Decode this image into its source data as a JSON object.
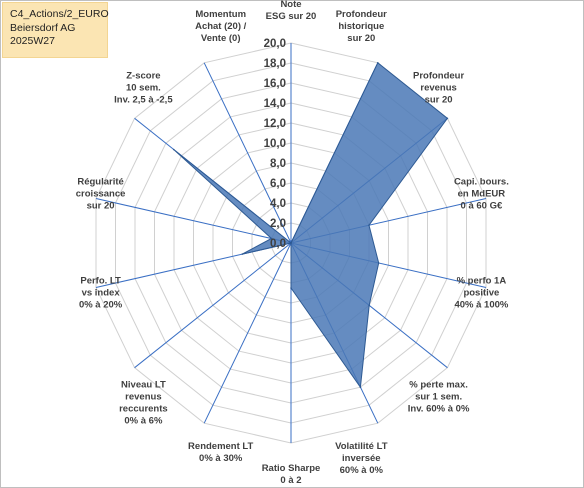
{
  "header": {
    "line1": "C4_Actions/2_EURO",
    "line2": "Beiersdorf AG",
    "line3": "2025W27"
  },
  "colors": {
    "fill": "#4a78b6",
    "stroke": "#2e5a93",
    "grid": "#d0d0d0",
    "spoke": "#3a6fc4",
    "title_bg": "#fbe5b3"
  },
  "chart_data": {
    "type": "radar",
    "rmin": 0,
    "rmax": 20,
    "tick_labels": [
      "0,0",
      "2,0",
      "4,0",
      "6,0",
      "8,0",
      "10,0",
      "12,0",
      "14,0",
      "16,0",
      "18,0",
      "20,0"
    ],
    "axes": [
      {
        "label": [
          "Note",
          "ESG sur 20"
        ],
        "value": 0
      },
      {
        "label": [
          "Profondeur",
          "historique",
          "sur 20"
        ],
        "value": 20
      },
      {
        "label": [
          "Profondeur",
          "revenus",
          "sur 20"
        ],
        "value": 20
      },
      {
        "label": [
          "Capi. bours.",
          "en MdEUR",
          "0 à 60 G€"
        ],
        "value": 8.0
      },
      {
        "label": [
          "% perfo 1A",
          "positive",
          "40% à 100%"
        ],
        "value": 9.0
      },
      {
        "label": [
          "% perte max.",
          "sur 1 sem.",
          "Inv. 60% à 0%"
        ],
        "value": 10.0
      },
      {
        "label": [
          "Volatilité LT",
          "inversée",
          "60% à 0%"
        ],
        "value": 16.0
      },
      {
        "label": [
          "Ratio Sharpe",
          "0 à 2"
        ],
        "value": 4.5
      },
      {
        "label": [
          "Rendement LT",
          "0% à 30%"
        ],
        "value": 0
      },
      {
        "label": [
          "Niveau LT",
          "revenus",
          "reccurents",
          "0% à 6%"
        ],
        "value": 0
      },
      {
        "label": [
          "Perfo. LT",
          "vs index",
          "0% à 20%"
        ],
        "value": 5.0
      },
      {
        "label": [
          "Régularité",
          "croissance",
          "sur 20"
        ],
        "value": 2.0
      },
      {
        "label": [
          "Z-score",
          "10 sem.",
          "Inv. 2,5 à -2,5"
        ],
        "value": 15.0
      },
      {
        "label": [
          "Momentum",
          "Achat (20) /",
          "Vente (0)"
        ],
        "value": 0
      }
    ]
  }
}
